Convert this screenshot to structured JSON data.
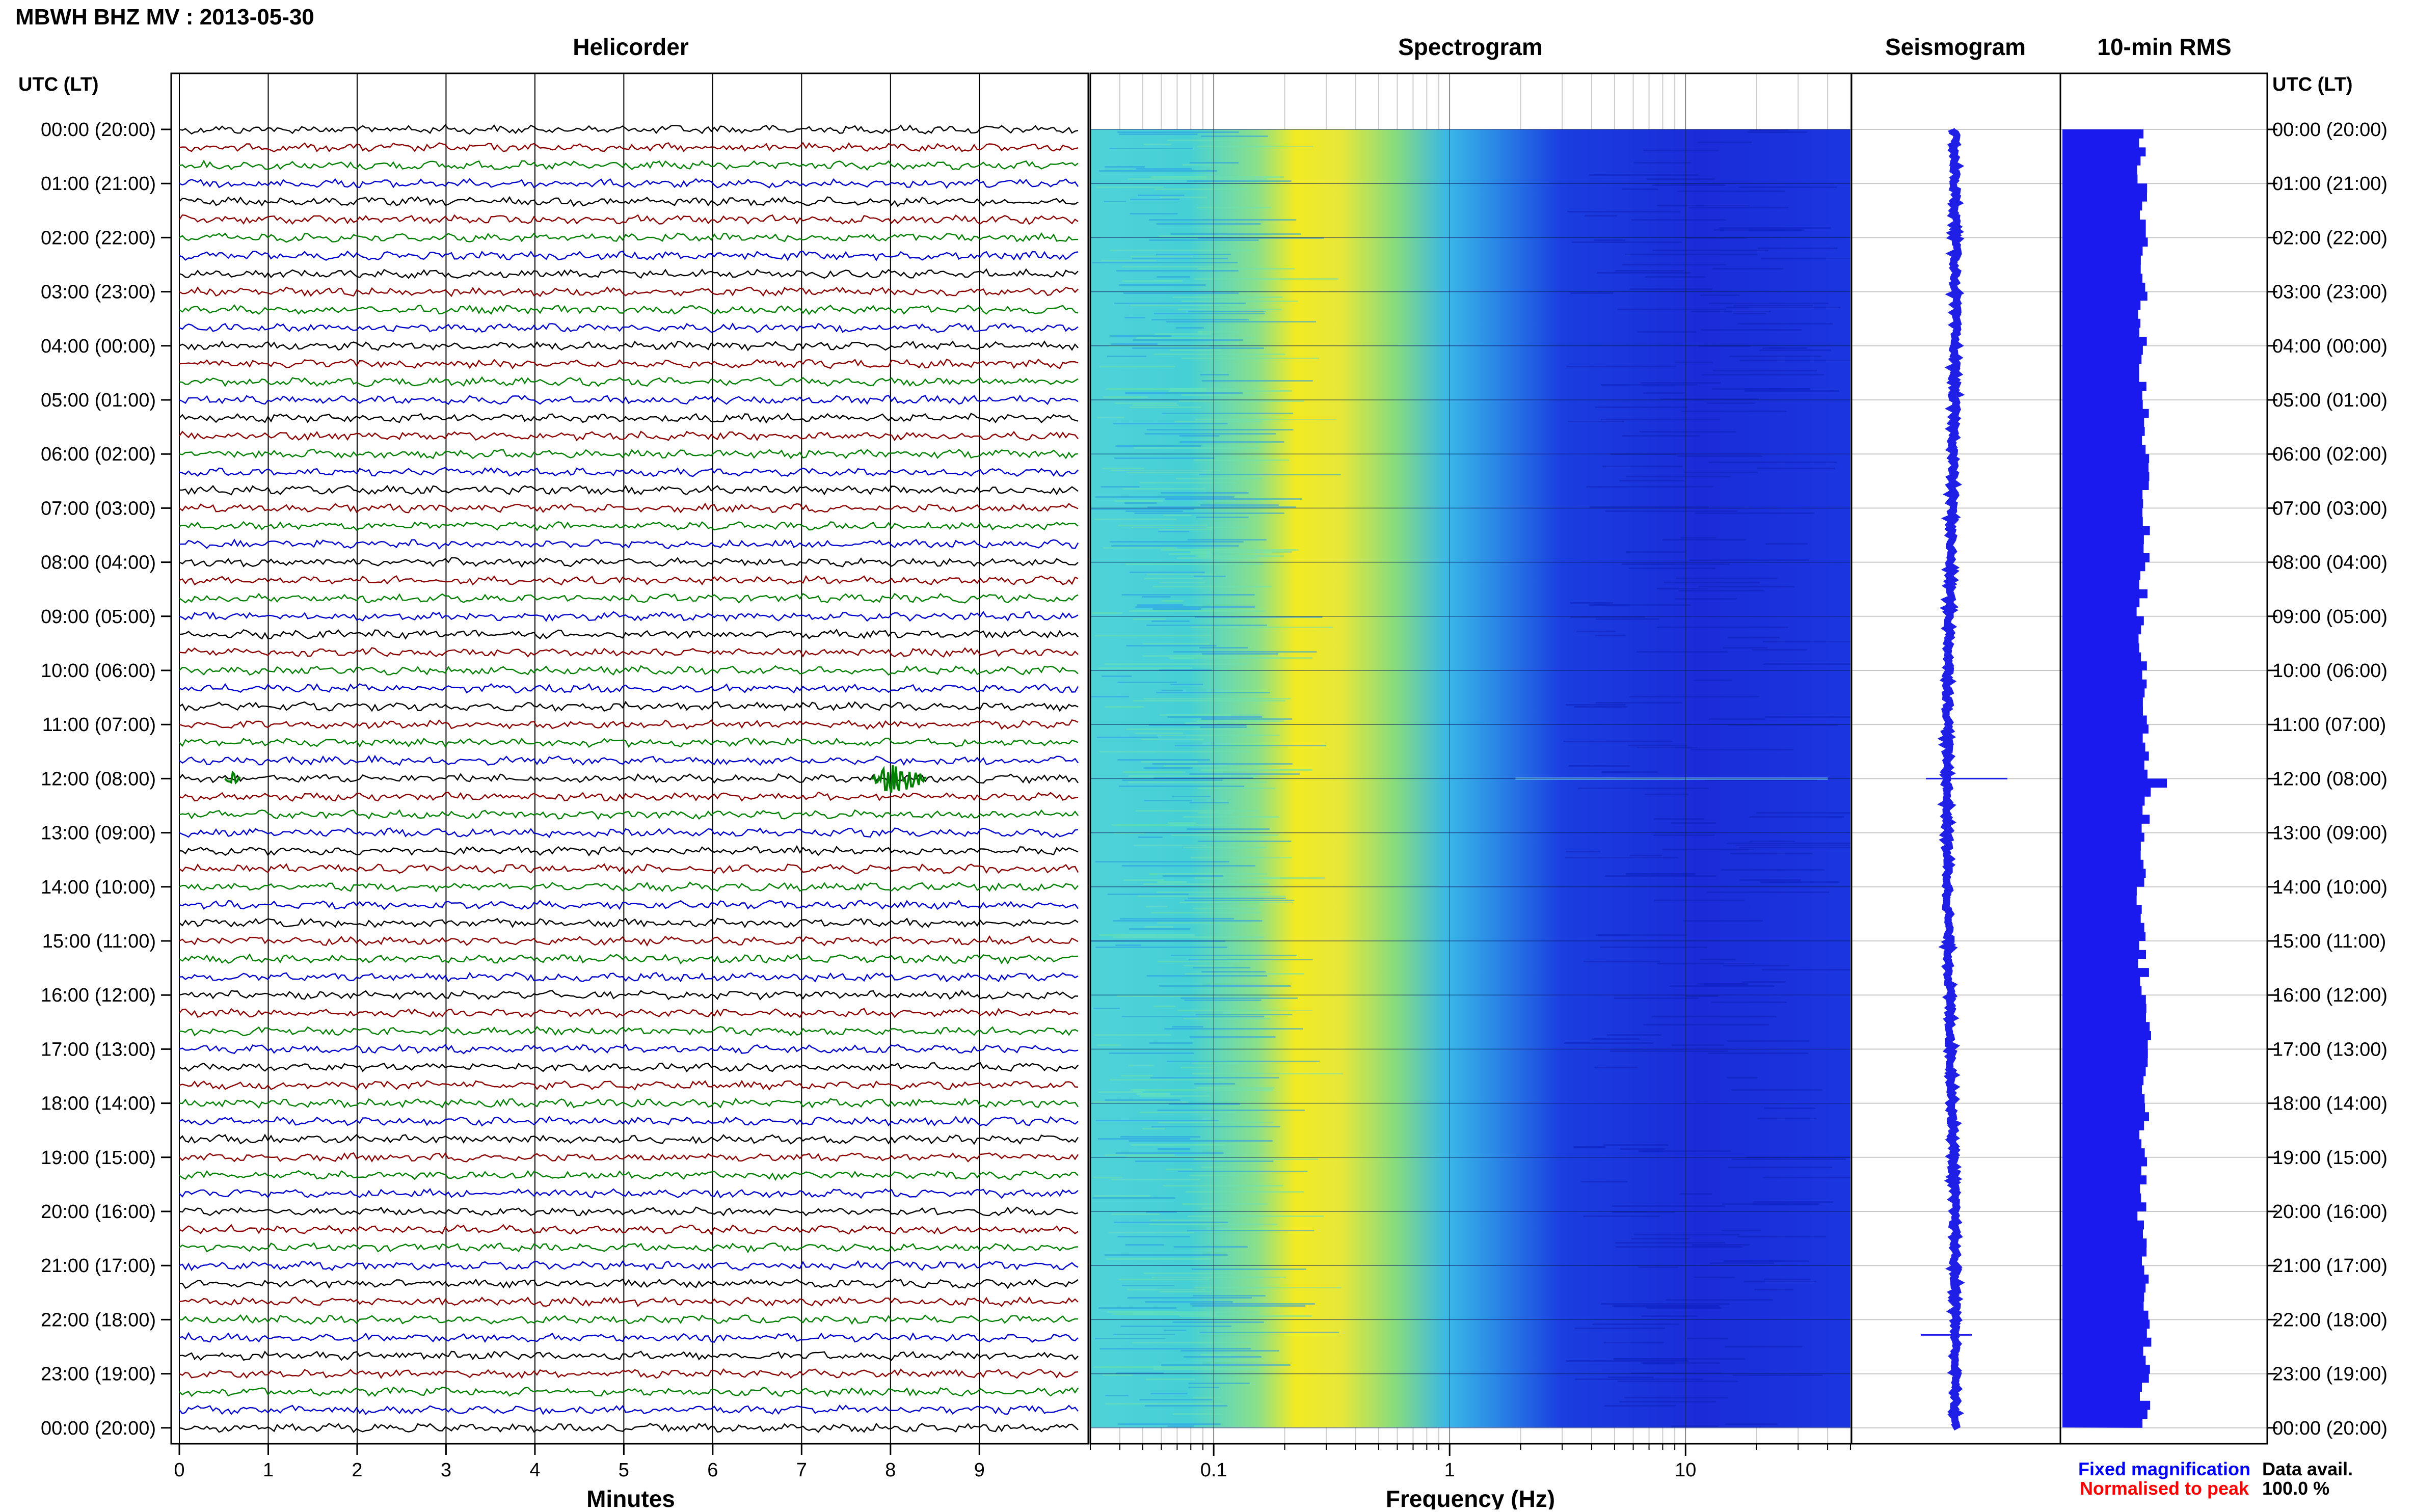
{
  "page_title": "MBWH BHZ MV : 2013-05-30",
  "utc_header_left": "UTC (LT)",
  "utc_header_right": "UTC (LT)",
  "panels": {
    "helicorder": "Helicorder",
    "spectrogram": "Spectrogram",
    "seismogram": "Seismogram",
    "rms": "10-min RMS"
  },
  "hour_labels": [
    "00:00 (20:00)",
    "01:00 (21:00)",
    "02:00 (22:00)",
    "03:00 (23:00)",
    "04:00 (00:00)",
    "05:00 (01:00)",
    "06:00 (02:00)",
    "07:00 (03:00)",
    "08:00 (04:00)",
    "09:00 (05:00)",
    "10:00 (06:00)",
    "11:00 (07:00)",
    "12:00 (08:00)",
    "13:00 (09:00)",
    "14:00 (10:00)",
    "15:00 (11:00)",
    "16:00 (12:00)",
    "17:00 (13:00)",
    "18:00 (14:00)",
    "19:00 (15:00)",
    "20:00 (16:00)",
    "21:00 (17:00)",
    "22:00 (18:00)",
    "23:00 (19:00)",
    "00:00 (20:00)"
  ],
  "minute_ticks": [
    "0",
    "1",
    "2",
    "3",
    "4",
    "5",
    "6",
    "7",
    "8",
    "9"
  ],
  "frequency_ticks": [
    "0.1",
    "1",
    "10"
  ],
  "x_axis_labels": {
    "helicorder": "Minutes",
    "spectrogram": "Frequency (Hz)"
  },
  "legend": {
    "fixed": "Fixed magnification",
    "normalised": "Normalised to peak"
  },
  "data_avail": {
    "label": "Data avail.",
    "value": "100.0 %"
  },
  "colors": {
    "trace_cycle": [
      "#000000",
      "#8b0000",
      "#008000",
      "#0000cd"
    ],
    "seismogram": "#1f1fe6",
    "rms": "#1a1aee",
    "legend_fixed": "#0000ff",
    "legend_normalised": "#ff0000"
  },
  "chart_data": {
    "type": "heatmap",
    "helicorder": {
      "rows": 72,
      "minutes_per_row": 10,
      "xlim": [
        0,
        10
      ],
      "event_row_minutes": [
        0.6,
        8.1
      ]
    },
    "spectrogram": {
      "scale": "log",
      "xlim": [
        0.03,
        50
      ],
      "peak_frequency_hz": 0.25
    },
    "rms": {
      "bin_minutes": 10,
      "spike_hour": 12
    }
  }
}
